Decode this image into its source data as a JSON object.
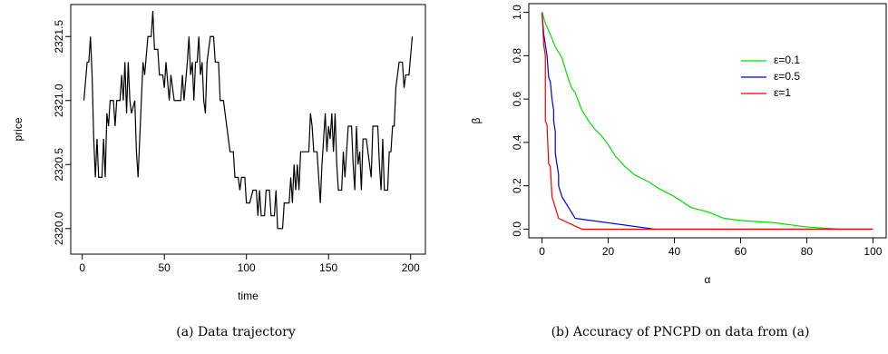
{
  "chart_data": [
    {
      "type": "line",
      "caption": "(a) Data trajectory",
      "xlabel": "time",
      "ylabel": "price",
      "color": "#000000",
      "xlim": [
        -7,
        209
      ],
      "ylim": [
        2319.8,
        2321.75
      ],
      "xticks": [
        0,
        50,
        100,
        150,
        200
      ],
      "yticks": [
        {
          "value": 2320,
          "label": "2320.0"
        },
        2320.5,
        {
          "value": 2321,
          "label": "2321.0"
        },
        2321.5
      ],
      "x": [
        1,
        3,
        4,
        5,
        6,
        7,
        8,
        9,
        10,
        12,
        13,
        14,
        15,
        16,
        17,
        19,
        20,
        21,
        23,
        24,
        25,
        26,
        27,
        28,
        29,
        30,
        32,
        33,
        34,
        35,
        37,
        38,
        40,
        42,
        43,
        44,
        46,
        47,
        49,
        50,
        51,
        53,
        54,
        56,
        60,
        61,
        62,
        64,
        65,
        66,
        67,
        68,
        69,
        70,
        71,
        72,
        73,
        74,
        75,
        76,
        78,
        80,
        81,
        83,
        84,
        86,
        88,
        90,
        92,
        93,
        95,
        96,
        97,
        99,
        100,
        102,
        104,
        106,
        107,
        108,
        109,
        111,
        112,
        114,
        115,
        117,
        118,
        119,
        122,
        123,
        126,
        127,
        128,
        129,
        130,
        131,
        132,
        133,
        138,
        139,
        140,
        141,
        143,
        144,
        145,
        146,
        147,
        148,
        149,
        150,
        151,
        152,
        153,
        154,
        155,
        156,
        158,
        159,
        160,
        161,
        162,
        164,
        165,
        166,
        167,
        168,
        169,
        170,
        171,
        173,
        174,
        176,
        177,
        180,
        181,
        182,
        183,
        184,
        186,
        187,
        188,
        189,
        190,
        191,
        193,
        195,
        196,
        197,
        199,
        201
      ],
      "values": [
        2321.0,
        2321.3,
        2321.3,
        2321.5,
        2321.2,
        2320.7,
        2320.4,
        2320.7,
        2320.4,
        2320.4,
        2320.7,
        2320.4,
        2320.9,
        2320.8,
        2321.0,
        2321.0,
        2320.8,
        2321.0,
        2321.0,
        2321.2,
        2321.0,
        2321.3,
        2320.9,
        2321.3,
        2321.0,
        2320.9,
        2321.0,
        2320.6,
        2320.4,
        2320.7,
        2321.3,
        2321.2,
        2321.5,
        2321.5,
        2321.7,
        2321.4,
        2321.4,
        2321.2,
        2321.2,
        2321.1,
        2321.3,
        2321.0,
        2321.2,
        2321.0,
        2321.0,
        2321.2,
        2321.0,
        2321.3,
        2321.5,
        2321.2,
        2321.3,
        2321.0,
        2321.3,
        2321.3,
        2321.5,
        2321.2,
        2321.3,
        2321.0,
        2320.9,
        2321.3,
        2321.5,
        2321.5,
        2321.3,
        2321.3,
        2321.0,
        2321.0,
        2320.8,
        2320.6,
        2320.6,
        2320.4,
        2320.4,
        2320.3,
        2320.4,
        2320.4,
        2320.2,
        2320.2,
        2320.3,
        2320.3,
        2320.1,
        2320.3,
        2320.1,
        2320.1,
        2320.3,
        2320.3,
        2320.1,
        2320.1,
        2320.3,
        2320.0,
        2320.0,
        2320.2,
        2320.2,
        2320.4,
        2320.2,
        2320.5,
        2320.3,
        2320.5,
        2320.3,
        2320.6,
        2320.6,
        2320.9,
        2320.8,
        2320.6,
        2320.6,
        2320.4,
        2320.2,
        2320.5,
        2320.7,
        2320.9,
        2320.6,
        2320.8,
        2320.7,
        2320.9,
        2320.6,
        2320.9,
        2320.5,
        2320.3,
        2320.3,
        2320.6,
        2320.4,
        2320.6,
        2320.8,
        2320.8,
        2320.5,
        2320.3,
        2320.8,
        2320.5,
        2320.6,
        2320.3,
        2320.7,
        2320.7,
        2320.6,
        2320.4,
        2320.8,
        2320.8,
        2320.5,
        2320.3,
        2320.7,
        2320.3,
        2320.3,
        2320.6,
        2320.6,
        2320.8,
        2320.8,
        2321.1,
        2321.3,
        2321.3,
        2321.1,
        2321.2,
        2321.2,
        2321.5
      ]
    },
    {
      "type": "line",
      "caption": "(b) Accuracy of PNCPD on data from (a)",
      "xlabel": "α",
      "ylabel": "β",
      "legend": "topright",
      "xlim": [
        -4,
        104
      ],
      "ylim": [
        -0.04,
        1.04
      ],
      "xticks": [
        0,
        20,
        40,
        60,
        80,
        100
      ],
      "yticks": [
        {
          "value": 0,
          "label": "0.0"
        },
        0.2,
        0.4,
        0.6,
        0.8,
        {
          "value": 1,
          "label": "1.0"
        }
      ],
      "series": [
        {
          "name": "ε=0.1",
          "color": "#00e000",
          "x": [
            0,
            1,
            3,
            4,
            6,
            7,
            8,
            9,
            10,
            11,
            12,
            14,
            16,
            18,
            20,
            22,
            25,
            28,
            32,
            35,
            40,
            45,
            50,
            55,
            60,
            70,
            80,
            90,
            100
          ],
          "values": [
            1,
            0.95,
            0.88,
            0.84,
            0.79,
            0.74,
            0.69,
            0.65,
            0.63,
            0.59,
            0.55,
            0.5,
            0.46,
            0.43,
            0.39,
            0.34,
            0.29,
            0.25,
            0.22,
            0.19,
            0.15,
            0.1,
            0.08,
            0.05,
            0.04,
            0.03,
            0.01,
            0,
            0
          ]
        },
        {
          "name": "ε=0.5",
          "color": "#0000cc",
          "x": [
            0,
            0.5,
            1,
            1.5,
            2,
            2.5,
            3,
            3.5,
            3.5,
            4,
            4,
            4.5,
            5,
            5,
            6,
            8,
            10,
            34,
            100
          ],
          "values": [
            1,
            0.9,
            0.85,
            0.8,
            0.7,
            0.68,
            0.6,
            0.55,
            0.5,
            0.45,
            0.35,
            0.3,
            0.25,
            0.2,
            0.15,
            0.1,
            0.05,
            0,
            0
          ]
        },
        {
          "name": "ε=1",
          "color": "#ee0000",
          "x": [
            0,
            0.5,
            1,
            1,
            1.5,
            2,
            2.5,
            3,
            4,
            5,
            12,
            100
          ],
          "values": [
            1,
            0.85,
            0.8,
            0.5,
            0.48,
            0.3,
            0.29,
            0.15,
            0.1,
            0.05,
            0,
            0
          ]
        }
      ]
    }
  ]
}
